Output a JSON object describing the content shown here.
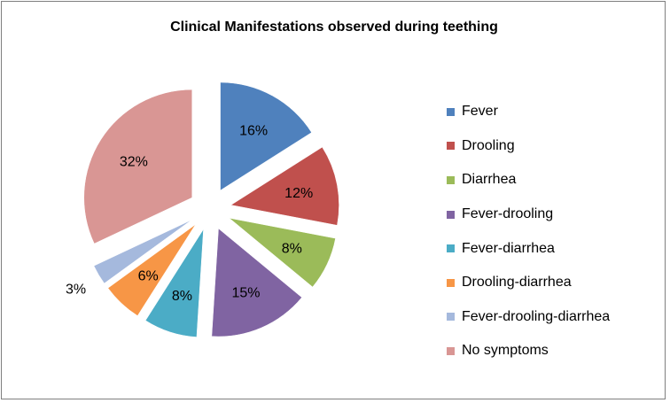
{
  "chart_data": {
    "type": "pie",
    "title": "Clinical Manifestations  observed during teething",
    "categories": [
      "Fever",
      "Drooling",
      "Diarrhea",
      "Fever-drooling",
      "Fever-diarrhea",
      "Drooling-diarrhea",
      "Fever-drooling-diarrhea",
      "No symptoms"
    ],
    "values": [
      16,
      12,
      8,
      15,
      8,
      6,
      3,
      32
    ],
    "data_labels": [
      "16%",
      "12%",
      "8%",
      "15%",
      "8%",
      "6%",
      "3%",
      "32%"
    ],
    "colors": [
      "#4f81bd",
      "#c0504d",
      "#9bbb59",
      "#8064a2",
      "#4bacc6",
      "#f79646",
      "#a5b9dd",
      "#d99694"
    ],
    "exploded": true,
    "legend_position": "right"
  }
}
